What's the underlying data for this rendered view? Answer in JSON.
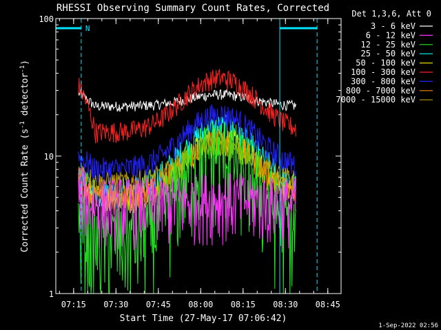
{
  "chart_data": {
    "type": "line",
    "title": "RHESSI Observing Summary Count Rates, Corrected",
    "xlabel": "Start Time (27-May-17 07:06:42)",
    "ylabel_main": "Corrected Count Rate (s",
    "ylabel_sup1": "-1",
    "ylabel_mid": " detector",
    "ylabel_sup2": "-1",
    "ylabel_end": ")",
    "yscale": "log",
    "ylim": [
      1,
      100
    ],
    "y_ticks": [
      {
        "v": 1,
        "label": "1"
      },
      {
        "v": 10,
        "label": "10"
      },
      {
        "v": 100,
        "label": "100"
      }
    ],
    "xlim_minutes": [
      2,
      103
    ],
    "x_ticks": [
      {
        "m": 8.3,
        "label": "07:15"
      },
      {
        "m": 23.3,
        "label": "07:30"
      },
      {
        "m": 38.3,
        "label": "07:45"
      },
      {
        "m": 53.3,
        "label": "08:00"
      },
      {
        "m": 68.3,
        "label": "08:15"
      },
      {
        "m": 83.3,
        "label": "08:30"
      },
      {
        "m": 98.3,
        "label": "08:45"
      }
    ],
    "legend_header": "Det 1,3,6, Att 0",
    "legend_position": "right",
    "night_marker": "N",
    "night_interval_minutes": [
      2,
      11
    ],
    "saa_interval_minutes": [
      81.3,
      94.5
    ],
    "data_range_minutes": [
      10,
      87
    ],
    "series": [
      {
        "name": "3 - 6 keV",
        "color": "#ffffff",
        "base": 23,
        "peak": 28,
        "bump": 1.0,
        "noise": 0.04
      },
      {
        "name": "6 - 12 keV",
        "color": "#ff33ff",
        "base": 4.5,
        "peak": 6,
        "bump": 0.3,
        "noise": 0.25
      },
      {
        "name": "12 - 25 keV",
        "color": "#22ee22",
        "base": 2.5,
        "peak": 11,
        "bump": 1.0,
        "noise": 0.35
      },
      {
        "name": "25 - 50 keV",
        "color": "#00ffff",
        "base": 5.5,
        "peak": 16,
        "bump": 1.0,
        "noise": 0.12
      },
      {
        "name": "50 - 100 keV",
        "color": "#dddd00",
        "base": 5,
        "peak": 13,
        "bump": 1.0,
        "noise": 0.12
      },
      {
        "name": "100 - 300 keV",
        "color": "#ff2222",
        "base": 15,
        "peak": 37,
        "bump": 1.0,
        "noise": 0.08
      },
      {
        "name": "300 - 800 keV",
        "color": "#2222ff",
        "base": 8,
        "peak": 20,
        "bump": 1.0,
        "noise": 0.1
      },
      {
        "name": "800 - 7000 keV",
        "color": "#ff8800",
        "base": 5,
        "peak": 13,
        "bump": 1.0,
        "noise": 0.1
      },
      {
        "name": "7000 - 15000 keV",
        "color": "#bb9900",
        "base": 6.5,
        "peak": 12,
        "bump": 1.0,
        "noise": 0.08
      }
    ]
  },
  "footer": {
    "timestamp": "1-Sep-2022 02:56"
  }
}
